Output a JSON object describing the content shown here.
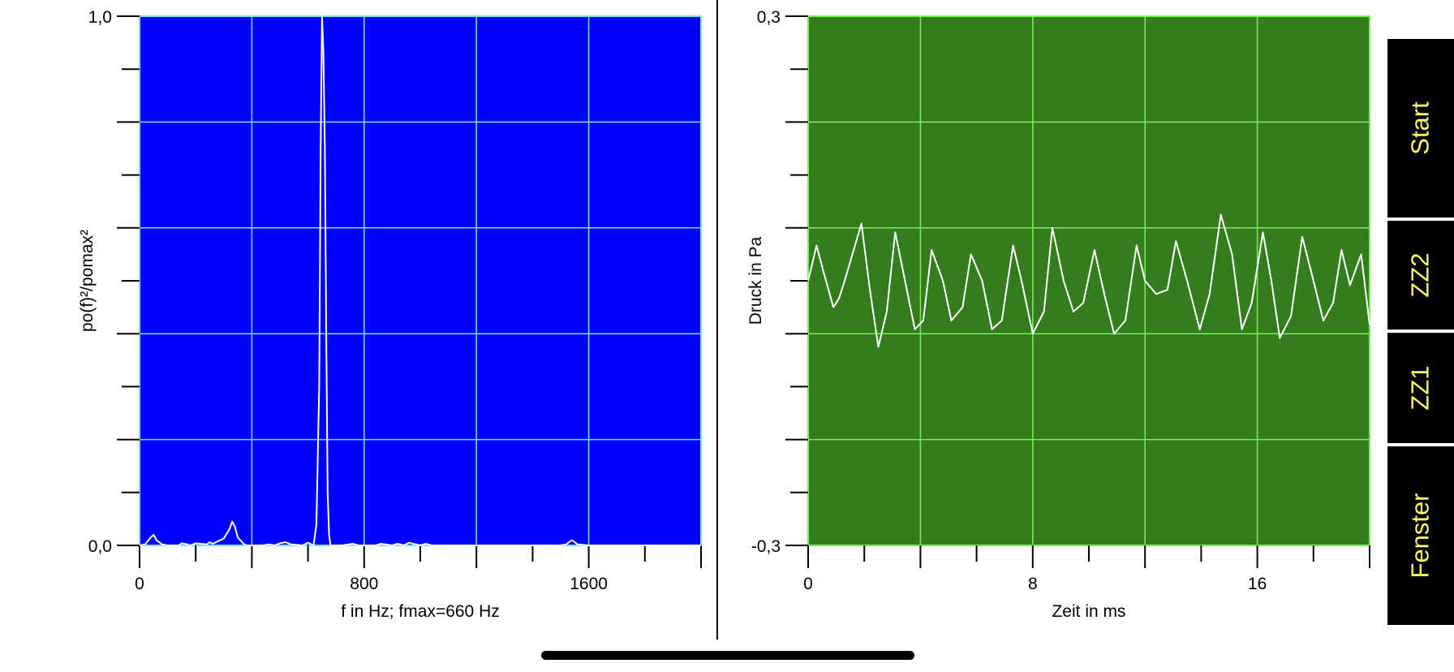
{
  "colors": {
    "left_bg": "#0000ff",
    "right_bg": "#347c1e",
    "left_grid": "#7fe0e6",
    "right_grid": "#79f05a",
    "trace": "#ffffff",
    "button_bg": "#000000",
    "button_text": "#ffff66"
  },
  "sidebar": {
    "buttons": [
      {
        "id": "start",
        "label": "Start"
      },
      {
        "id": "zz2",
        "label": "ZZ2"
      },
      {
        "id": "zz1",
        "label": "ZZ1"
      },
      {
        "id": "fenster",
        "label": "Fenster"
      }
    ]
  },
  "chart_data": [
    {
      "type": "line",
      "xlabel": "f in Hz; fmax=660 Hz",
      "ylabel": "po(f)²/pomax²",
      "xlim": [
        0,
        2000
      ],
      "ylim": [
        0,
        1
      ],
      "x_ticks": [
        0,
        800,
        1600
      ],
      "x_tick_labels": [
        "0",
        "800",
        "1600"
      ],
      "y_tick_labels": [
        "0,0",
        "1,0"
      ],
      "grid": true,
      "x": [
        0,
        20,
        40,
        50,
        60,
        80,
        100,
        140,
        150,
        170,
        180,
        200,
        240,
        250,
        260,
        280,
        300,
        320,
        330,
        340,
        350,
        370,
        380,
        400,
        440,
        460,
        480,
        500,
        520,
        540,
        580,
        600,
        620,
        630,
        640,
        645,
        650,
        655,
        660,
        665,
        670,
        675,
        680,
        690,
        700,
        720,
        760,
        780,
        800,
        840,
        860,
        900,
        920,
        940,
        960,
        1000,
        1020,
        1040,
        1080,
        1500,
        1520,
        1540,
        1560,
        1600,
        2000
      ],
      "y": [
        0,
        0.002,
        0.015,
        0.02,
        0.01,
        0.002,
        0,
        0,
        0.004,
        0.002,
        0,
        0.004,
        0.002,
        0.006,
        0.003,
        0.008,
        0.013,
        0.03,
        0.045,
        0.035,
        0.015,
        0.003,
        0,
        0,
        0,
        0.002,
        0,
        0.004,
        0.006,
        0.002,
        0,
        0.005,
        0,
        0.04,
        0.3,
        0.75,
        1.0,
        0.93,
        0.75,
        0.4,
        0.1,
        0.02,
        0,
        0,
        0,
        0,
        0.003,
        0,
        0,
        0,
        0.003,
        0,
        0.003,
        0,
        0.005,
        0,
        0.003,
        0,
        0,
        0,
        0.002,
        0.01,
        0.002,
        0,
        0
      ]
    },
    {
      "type": "line",
      "xlabel": "Zeit in ms",
      "ylabel": "Druck in Pa",
      "xlim": [
        0,
        20
      ],
      "ylim": [
        -0.3,
        0.3
      ],
      "x_ticks": [
        0,
        8,
        16
      ],
      "x_tick_labels": [
        "0",
        "8",
        "16"
      ],
      "y_tick_labels": [
        "-0,3",
        "0,3"
      ],
      "grid": true,
      "x": [
        0,
        0.3,
        0.55,
        0.9,
        1.1,
        1.3,
        1.9,
        2.2,
        2.5,
        2.8,
        3.1,
        3.45,
        3.8,
        4.1,
        4.4,
        4.8,
        5.1,
        5.5,
        5.8,
        6.2,
        6.55,
        6.9,
        7.3,
        7.6,
        8.0,
        8.4,
        8.7,
        9.1,
        9.45,
        9.8,
        10.2,
        10.55,
        10.9,
        11.3,
        11.7,
        12.0,
        12.4,
        12.8,
        13.1,
        13.5,
        13.95,
        14.3,
        14.7,
        15.1,
        15.45,
        15.8,
        16.2,
        16.5,
        16.8,
        17.2,
        17.6,
        18.0,
        18.35,
        18.7,
        19.0,
        19.3,
        19.7,
        20.0
      ],
      "y": [
        0.0,
        0.04,
        0.01,
        -0.03,
        -0.02,
        0.0,
        0.065,
        -0.01,
        -0.075,
        -0.035,
        0.055,
        0.0,
        -0.055,
        -0.045,
        0.035,
        0.0,
        -0.045,
        -0.03,
        0.03,
        0.0,
        -0.055,
        -0.045,
        0.04,
        0.0,
        -0.06,
        -0.035,
        0.06,
        0.0,
        -0.035,
        -0.025,
        0.035,
        -0.015,
        -0.06,
        -0.045,
        0.04,
        0.0,
        -0.015,
        -0.01,
        0.045,
        0.0,
        -0.055,
        -0.015,
        0.075,
        0.03,
        -0.055,
        -0.025,
        0.055,
        0.0,
        -0.065,
        -0.04,
        0.05,
        0.0,
        -0.045,
        -0.025,
        0.035,
        -0.005,
        0.03,
        -0.05
      ]
    }
  ]
}
